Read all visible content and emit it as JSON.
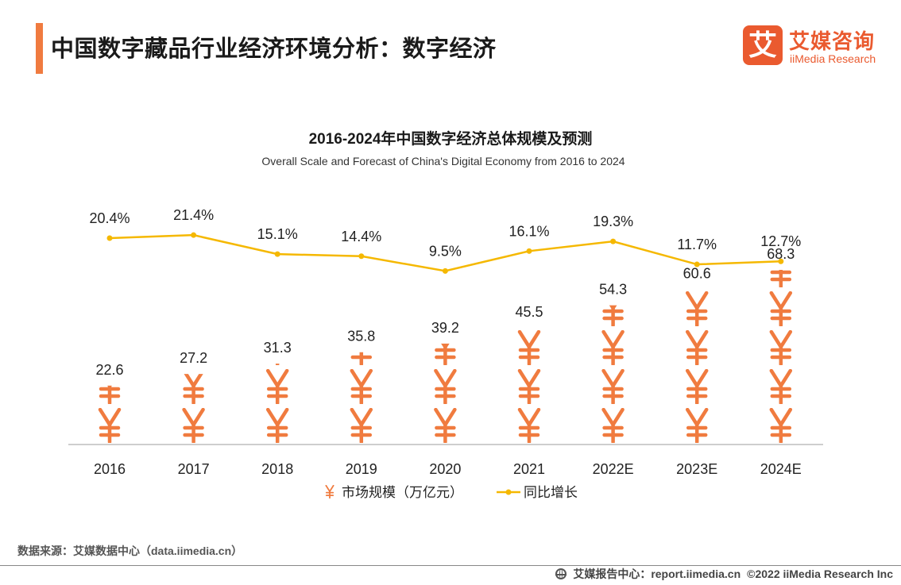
{
  "header": {
    "title": "中国数字藏品行业经济环境分析：数字经济",
    "accent_color": "#f07b3f"
  },
  "logo": {
    "mark": "艾",
    "name_cn": "艾媒咨询",
    "name_en": "iiMedia Research",
    "color": "#ea5a2f"
  },
  "chart_data": {
    "type": "bar",
    "title": "2016-2024年中国数字经济总体规模及预测",
    "subtitle": "Overall Scale and Forecast of China's Digital Economy from 2016 to 2024",
    "categories": [
      "2016",
      "2017",
      "2018",
      "2019",
      "2020",
      "2021",
      "2022E",
      "2023E",
      "2024E"
    ],
    "series": [
      {
        "name": "市场规模（万亿元）",
        "kind": "pictogram-bar",
        "icon": "yuan-icon",
        "color": "#f07b3f",
        "values": [
          22.6,
          27.2,
          31.3,
          35.8,
          39.2,
          45.5,
          54.3,
          60.6,
          68.3
        ],
        "labels": [
          "22.6",
          "27.2",
          "31.3",
          "35.8",
          "39.2",
          "45.5",
          "54.3",
          "60.6",
          "68.3"
        ]
      },
      {
        "name": "同比增长",
        "kind": "line",
        "color": "#f5b800",
        "values": [
          20.4,
          21.4,
          15.1,
          14.4,
          9.5,
          16.1,
          19.3,
          11.7,
          12.7
        ],
        "labels": [
          "20.4%",
          "21.4%",
          "15.1%",
          "14.4%",
          "9.5%",
          "16.1%",
          "19.3%",
          "11.7%",
          "12.7%"
        ]
      }
    ],
    "ylim": [
      0,
      90
    ],
    "grid": false,
    "legend_position": "bottom"
  },
  "footer": {
    "source": "数据来源：艾媒数据中心（data.iimedia.cn）",
    "report_site": "艾媒报告中心：report.iimedia.cn",
    "copyright": "©2022  iiMedia Research  Inc"
  }
}
